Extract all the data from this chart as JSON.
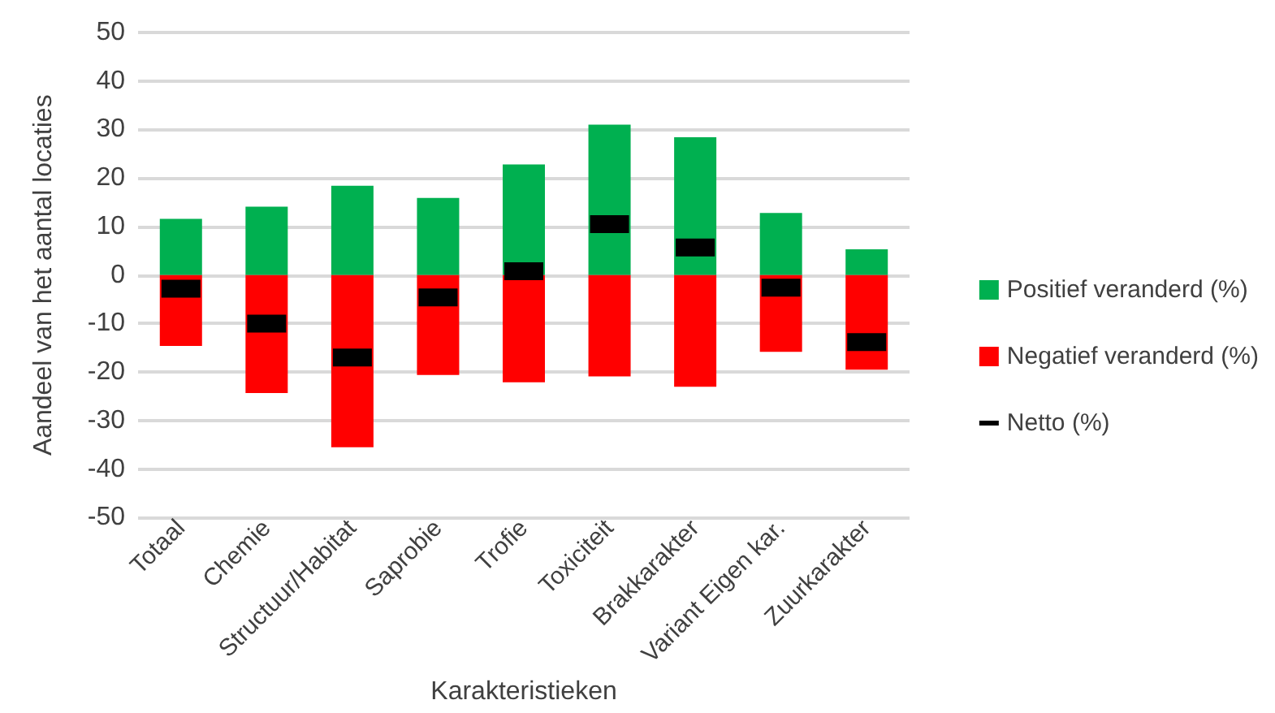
{
  "chart_data": {
    "type": "bar",
    "stacked": true,
    "xlabel": "Karakteristieken",
    "ylabel": "Aandeel van het aantal locaties",
    "categories": [
      "Totaal",
      "Chemie",
      "Structuur/Habitat",
      "Saprobie",
      "Trofie",
      "Toxiciteit",
      "Brakkarakter",
      "Variant Eigen kar.",
      "Zuurkarakter"
    ],
    "series": [
      {
        "name": "Positief veranderd (%)",
        "color": "#00b050",
        "values": [
          11.6,
          14.1,
          18.4,
          15.9,
          22.8,
          31.0,
          28.4,
          12.8,
          5.3
        ]
      },
      {
        "name": "Negatief veranderd (%)",
        "color": "#ff0000",
        "values": [
          -14.6,
          -24.3,
          -35.5,
          -20.6,
          -22.1,
          -20.9,
          -23.0,
          -15.8,
          -19.5
        ]
      },
      {
        "name": "Netto (%)",
        "type": "scatter",
        "color": "#000000",
        "x": [
          "Totaal",
          "Chemie",
          "Structuur/Habitat",
          "Saprobie",
          "Trofie",
          "Toxiciteit",
          "Brakkarakter",
          "Variant Eigen kar.",
          "Zuurkarakter"
        ],
        "values": [
          -2.8,
          -10.0,
          -17.0,
          -4.6,
          0.8,
          10.5,
          5.7,
          -2.6,
          -13.8
        ]
      }
    ],
    "ylim": [
      -50,
      50
    ],
    "yticks": [
      -50,
      -40,
      -30,
      -20,
      -10,
      0,
      10,
      20,
      30,
      40,
      50
    ],
    "grid": "y",
    "legend": "right"
  }
}
